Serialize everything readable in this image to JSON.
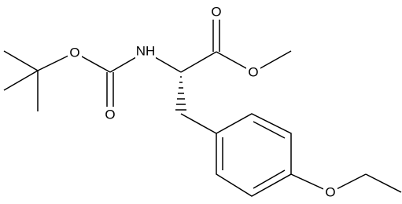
{
  "atoms": [
    {
      "label": "O"
    },
    {
      "label": "NH"
    },
    {
      "label": "O"
    },
    {
      "label": "O"
    },
    {
      "label": "O"
    },
    {
      "label": "O"
    }
  ]
}
